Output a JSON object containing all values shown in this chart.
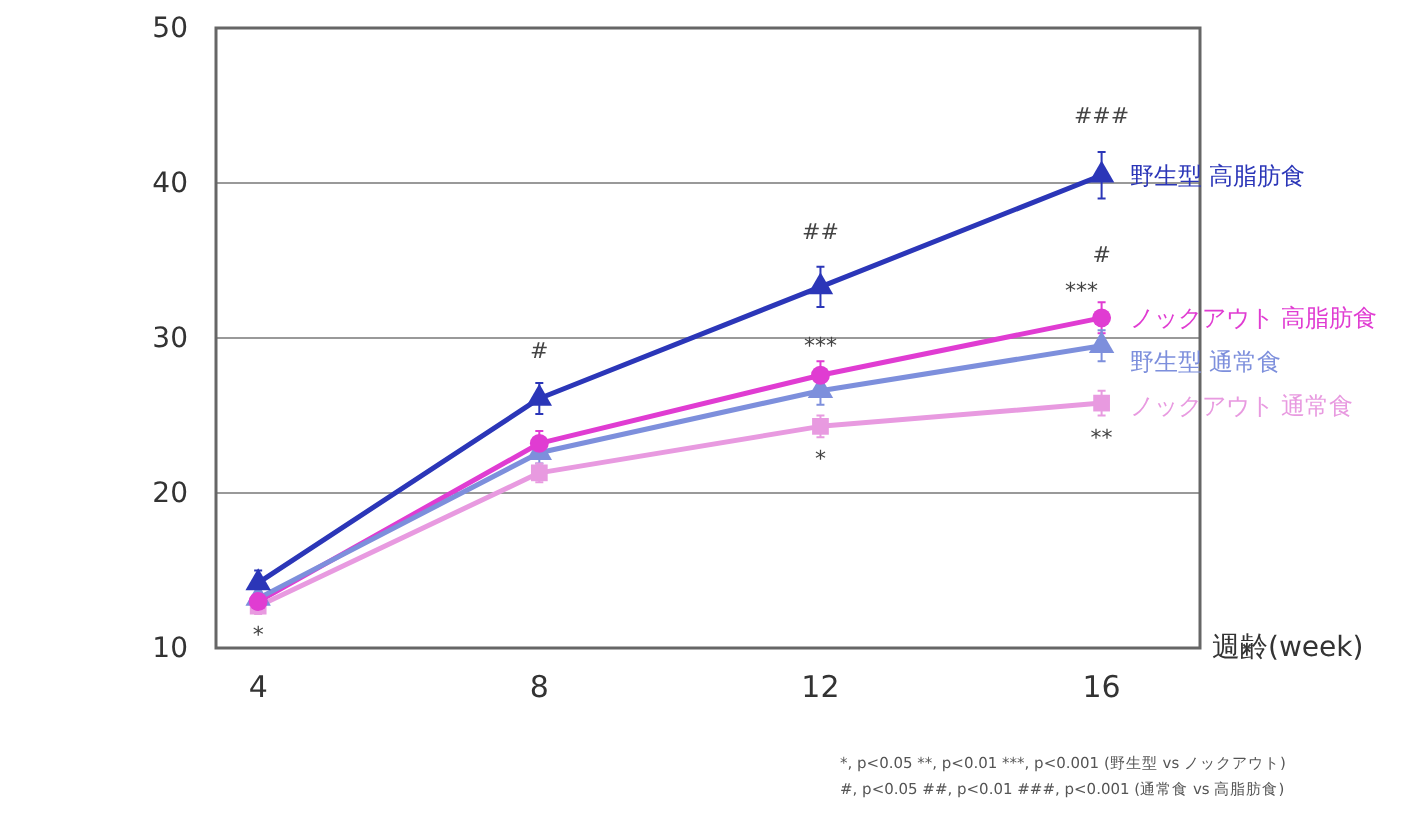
{
  "chart_data": {
    "type": "line",
    "xlabel": "週齢(week)",
    "x": [
      4,
      8,
      12,
      16
    ],
    "xlim": [
      3.4,
      17.4
    ],
    "xticks": [
      4,
      8,
      12,
      16
    ],
    "ylim": [
      10,
      50
    ],
    "yticks": [
      10,
      20,
      30,
      40,
      50
    ],
    "grid": "y",
    "series": [
      {
        "name": "野生型 高脂肪食",
        "color": "#2b36b8",
        "marker": "triangle",
        "values": [
          14.2,
          26.1,
          33.3,
          40.5
        ],
        "errors": [
          0.8,
          1.0,
          1.3,
          1.5
        ]
      },
      {
        "name": "ノックアウト 高脂肪食",
        "color": "#e03cd2",
        "marker": "circle",
        "values": [
          13.0,
          23.2,
          27.6,
          31.3
        ],
        "errors": [
          0.6,
          0.8,
          0.9,
          1.0
        ]
      },
      {
        "name": "野生型  通常食",
        "color": "#7d8fdc",
        "marker": "triangle",
        "values": [
          13.2,
          22.6,
          26.6,
          29.5
        ],
        "errors": [
          0.6,
          0.7,
          0.9,
          1.0
        ]
      },
      {
        "name": "ノックアウト  通常食",
        "color": "#e89ae0",
        "marker": "square",
        "values": [
          12.7,
          21.3,
          24.3,
          25.8
        ],
        "errors": [
          0.5,
          0.6,
          0.7,
          0.8
        ]
      }
    ],
    "annotations": [
      {
        "text": "*",
        "x": 4,
        "y": 12.7
      },
      {
        "text": "#",
        "x": 8,
        "y": 26.1
      },
      {
        "text": "##",
        "x": 12,
        "y": 33.3
      },
      {
        "text": "***",
        "x": 12,
        "y": 27.6
      },
      {
        "text": "*",
        "x": 12,
        "y": 24.3
      },
      {
        "text": "###",
        "x": 16,
        "y": 40.5
      },
      {
        "text": "#",
        "x": 16,
        "y": 31.3
      },
      {
        "text": "***",
        "x": 16,
        "y": 31.3
      },
      {
        "text": "**",
        "x": 16,
        "y": 25.8
      },
      "*, p<0.05 **, p<0.01 ***, p<0.001 (野生型 vs ノックアウト)",
      "#, p<0.05 ##, p<0.01 ###, p<0.001 (通常食 vs 高脂肪食)"
    ]
  }
}
